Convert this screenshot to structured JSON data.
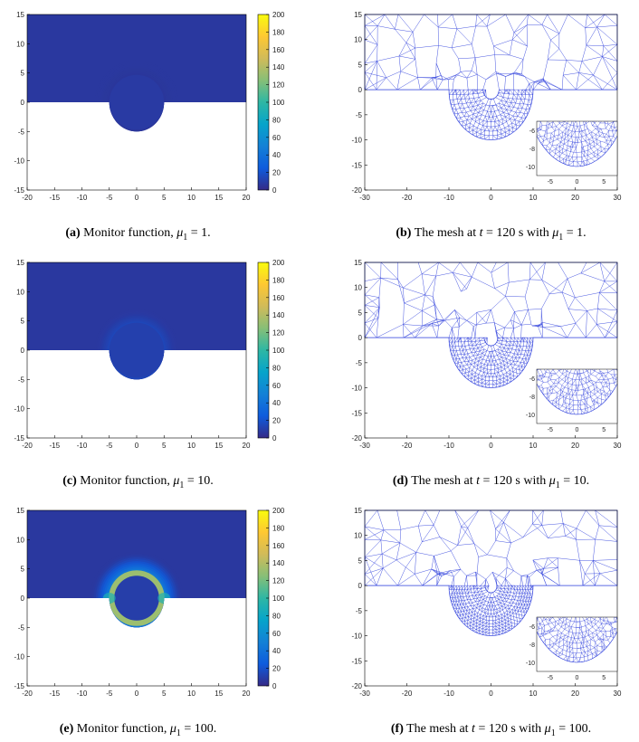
{
  "colors": {
    "mesh": "#3344dd",
    "parula": [
      "#352a87",
      "#0f5cdd",
      "#1481d6",
      "#06a4ca",
      "#2eb7a4",
      "#87bf77",
      "#d1bb59",
      "#fec832",
      "#f9fb0e"
    ]
  },
  "chart_data": [
    {
      "id": "a",
      "type": "heatmap",
      "title": "Monitor function",
      "xlim": [
        -20,
        20
      ],
      "ylim": [
        -15,
        15
      ],
      "xticks": [
        -20,
        -15,
        -10,
        -5,
        0,
        5,
        10,
        15,
        20
      ],
      "yticks": [
        -15,
        -10,
        -5,
        0,
        5,
        10,
        15
      ],
      "domain": {
        "rect": [
          -20,
          20,
          0,
          15
        ],
        "semicircle_radius": 5
      },
      "colorbar": {
        "min": 0,
        "max": 200,
        "ticks": [
          0,
          20,
          40,
          60,
          80,
          100,
          120,
          140,
          160,
          180,
          200
        ]
      },
      "mu1": 1,
      "monitor_peak": 3
    },
    {
      "id": "b",
      "type": "mesh",
      "title": "Mesh",
      "xlim": [
        -30,
        30
      ],
      "ylim": [
        -20,
        15
      ],
      "xticks": [
        -30,
        -20,
        -10,
        0,
        10,
        20,
        30
      ],
      "yticks": [
        -20,
        -15,
        -10,
        -5,
        0,
        5,
        10,
        15
      ],
      "domain": {
        "rect": [
          -30,
          30,
          0,
          15
        ],
        "semicircle_radius": 10
      },
      "inset": {
        "xlim": [
          -7.5,
          7.5
        ],
        "ylim": [
          -11,
          -5
        ],
        "xticks": [
          -5,
          0,
          5
        ],
        "yticks": [
          -10,
          -8,
          -6
        ]
      },
      "time_s": 120,
      "mu1": 1
    },
    {
      "id": "c",
      "type": "heatmap",
      "title": "Monitor function",
      "xlim": [
        -20,
        20
      ],
      "ylim": [
        -15,
        15
      ],
      "xticks": [
        -20,
        -15,
        -10,
        -5,
        0,
        5,
        10,
        15,
        20
      ],
      "yticks": [
        -15,
        -10,
        -5,
        0,
        5,
        10,
        15
      ],
      "domain": {
        "rect": [
          -20,
          20,
          0,
          15
        ],
        "semicircle_radius": 5
      },
      "colorbar": {
        "min": 0,
        "max": 200,
        "ticks": [
          0,
          20,
          40,
          60,
          80,
          100,
          120,
          140,
          160,
          180,
          200
        ]
      },
      "mu1": 10,
      "monitor_peak": 25
    },
    {
      "id": "d",
      "type": "mesh",
      "title": "Mesh",
      "xlim": [
        -30,
        30
      ],
      "ylim": [
        -20,
        15
      ],
      "xticks": [
        -30,
        -20,
        -10,
        0,
        10,
        20,
        30
      ],
      "yticks": [
        -20,
        -15,
        -10,
        -5,
        0,
        5,
        10,
        15
      ],
      "domain": {
        "rect": [
          -30,
          30,
          0,
          15
        ],
        "semicircle_radius": 10
      },
      "inset": {
        "xlim": [
          -7.5,
          7.5
        ],
        "ylim": [
          -11,
          -5
        ],
        "xticks": [
          -5,
          0,
          5
        ],
        "yticks": [
          -10,
          -8,
          -6
        ]
      },
      "time_s": 120,
      "mu1": 10
    },
    {
      "id": "e",
      "type": "heatmap",
      "title": "Monitor function",
      "xlim": [
        -20,
        20
      ],
      "ylim": [
        -15,
        15
      ],
      "xticks": [
        -20,
        -15,
        -10,
        -5,
        0,
        5,
        10,
        15,
        20
      ],
      "yticks": [
        -15,
        -10,
        -5,
        0,
        5,
        10,
        15
      ],
      "domain": {
        "rect": [
          -20,
          20,
          0,
          15
        ],
        "semicircle_radius": 5
      },
      "colorbar": {
        "min": 0,
        "max": 200,
        "ticks": [
          0,
          20,
          40,
          60,
          80,
          100,
          120,
          140,
          160,
          180,
          200
        ]
      },
      "mu1": 100,
      "monitor_peak": 100
    },
    {
      "id": "f",
      "type": "mesh",
      "title": "Mesh",
      "xlim": [
        -30,
        30
      ],
      "ylim": [
        -20,
        15
      ],
      "xticks": [
        -30,
        -20,
        -10,
        0,
        10,
        20,
        30
      ],
      "yticks": [
        -20,
        -15,
        -10,
        -5,
        0,
        5,
        10,
        15
      ],
      "domain": {
        "rect": [
          -30,
          30,
          0,
          15
        ],
        "semicircle_radius": 10
      },
      "inset": {
        "xlim": [
          -7.5,
          7.5
        ],
        "ylim": [
          -11,
          -5
        ],
        "xticks": [
          -5,
          0,
          5
        ],
        "yticks": [
          -10,
          -8,
          -6
        ]
      },
      "time_s": 120,
      "mu1": 100
    }
  ],
  "captions": {
    "a": {
      "label": "(a)",
      "text": "Monitor function,",
      "sym": "μ",
      "sub": "1",
      "eq": "= 1."
    },
    "b": {
      "label": "(b)",
      "text": "The mesh at",
      "t": "t",
      "tval": "= 120 s with",
      "sym": "μ",
      "sub": "1",
      "eq": "= 1."
    },
    "c": {
      "label": "(c)",
      "text": "Monitor function,",
      "sym": "μ",
      "sub": "1",
      "eq": "= 10."
    },
    "d": {
      "label": "(d)",
      "text": "The mesh at",
      "t": "t",
      "tval": "= 120 s with",
      "sym": "μ",
      "sub": "1",
      "eq": "= 10."
    },
    "e": {
      "label": "(e)",
      "text": "Monitor function,",
      "sym": "μ",
      "sub": "1",
      "eq": "= 100."
    },
    "f": {
      "label": "(f)",
      "text": "The mesh at",
      "t": "t",
      "tval": "= 120 s with",
      "sym": "μ",
      "sub": "1",
      "eq": "= 100."
    }
  }
}
